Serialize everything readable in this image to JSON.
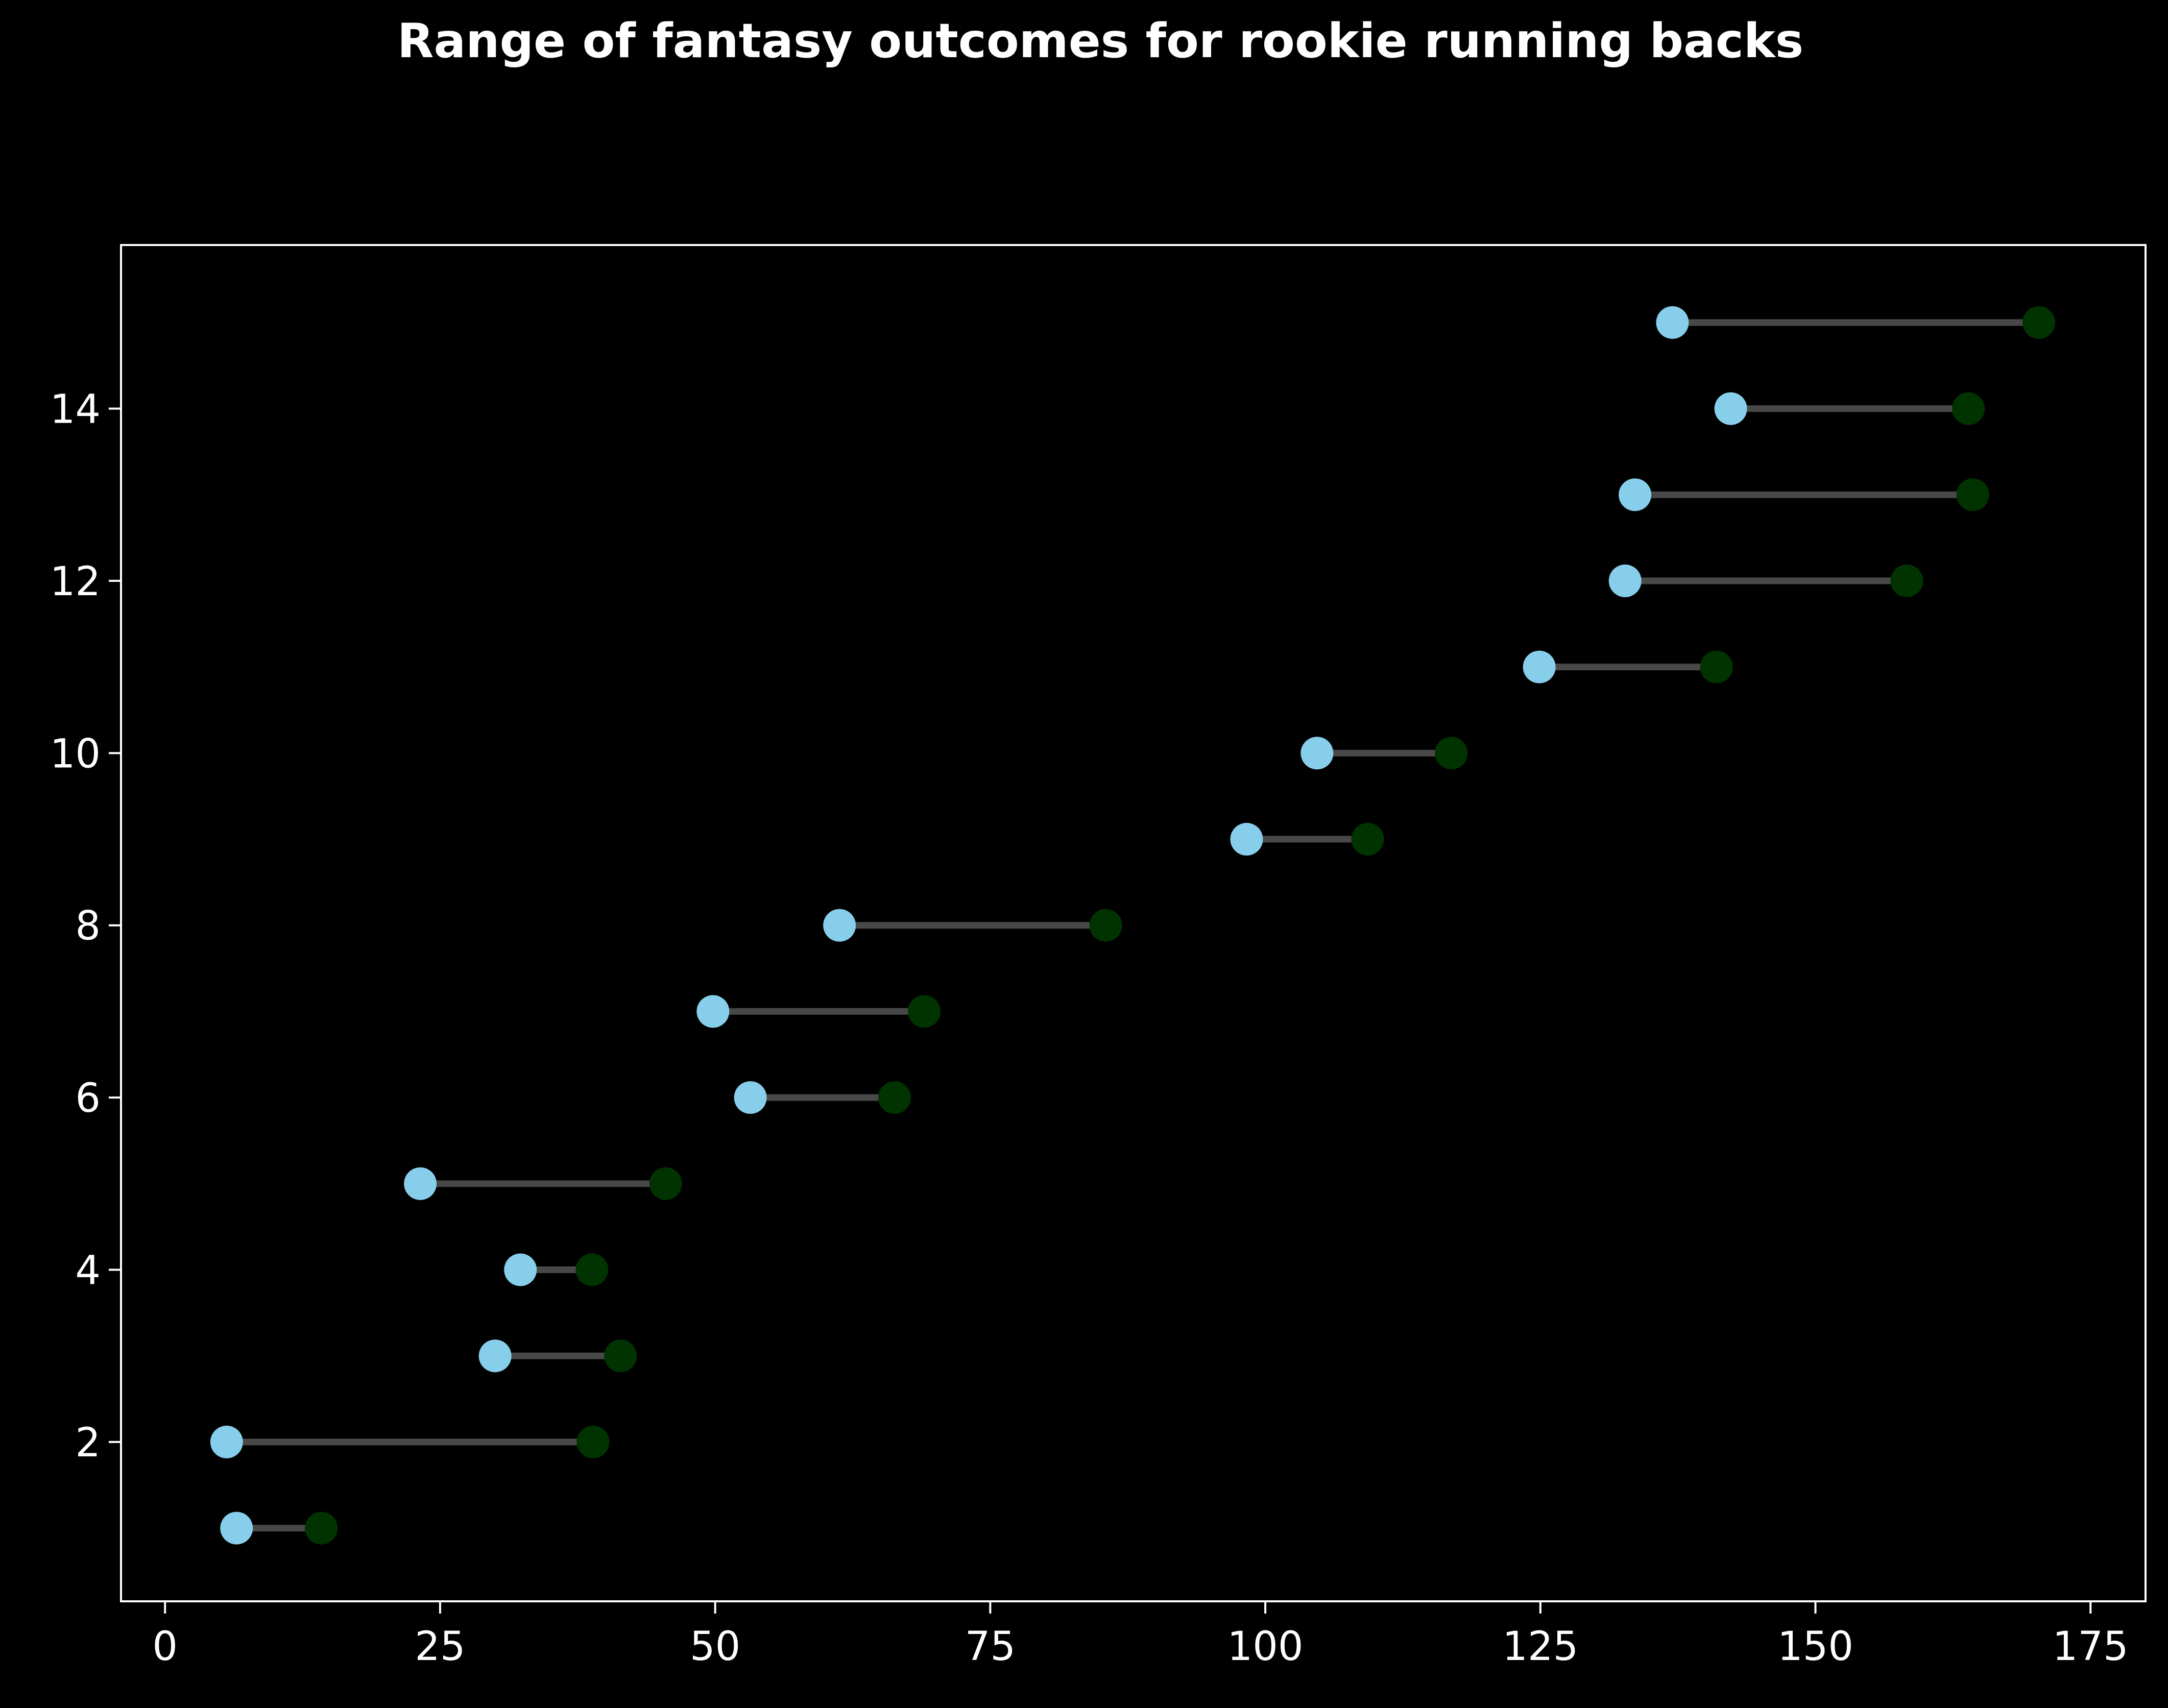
{
  "chart_data": {
    "type": "dumbbell",
    "title": "Range of fantasy outcomes for rookie running backs",
    "xlabel": "",
    "ylabel": "",
    "xlim": [
      -4,
      180
    ],
    "ylim": [
      0.15,
      15.9
    ],
    "x_ticks": [
      0,
      25,
      50,
      75,
      100,
      125,
      150,
      175
    ],
    "y_ticks": [
      2,
      4,
      6,
      8,
      10,
      12,
      14
    ],
    "grid": false,
    "legend": "none",
    "colors": {
      "background": "#000000",
      "axes": "#ffffff",
      "low_marker": "#87ceeb",
      "high_marker": "#003300",
      "range_line": "#555555"
    },
    "points": [
      {
        "y": 1,
        "low": 6.5,
        "high": 14.2
      },
      {
        "y": 2,
        "low": 5.6,
        "high": 38.9
      },
      {
        "y": 3,
        "low": 30.0,
        "high": 41.4
      },
      {
        "y": 4,
        "low": 32.3,
        "high": 38.8
      },
      {
        "y": 5,
        "low": 23.2,
        "high": 45.5
      },
      {
        "y": 6,
        "low": 53.2,
        "high": 66.3
      },
      {
        "y": 7,
        "low": 49.8,
        "high": 69.0
      },
      {
        "y": 8,
        "low": 61.3,
        "high": 85.5
      },
      {
        "y": 9,
        "low": 98.3,
        "high": 109.3
      },
      {
        "y": 10,
        "low": 104.7,
        "high": 116.9
      },
      {
        "y": 11,
        "low": 124.9,
        "high": 141.0
      },
      {
        "y": 12,
        "low": 132.7,
        "high": 158.3
      },
      {
        "y": 13,
        "low": 133.6,
        "high": 164.3
      },
      {
        "y": 14,
        "low": 142.3,
        "high": 163.9
      },
      {
        "y": 15,
        "low": 137.0,
        "high": 170.3
      }
    ]
  }
}
